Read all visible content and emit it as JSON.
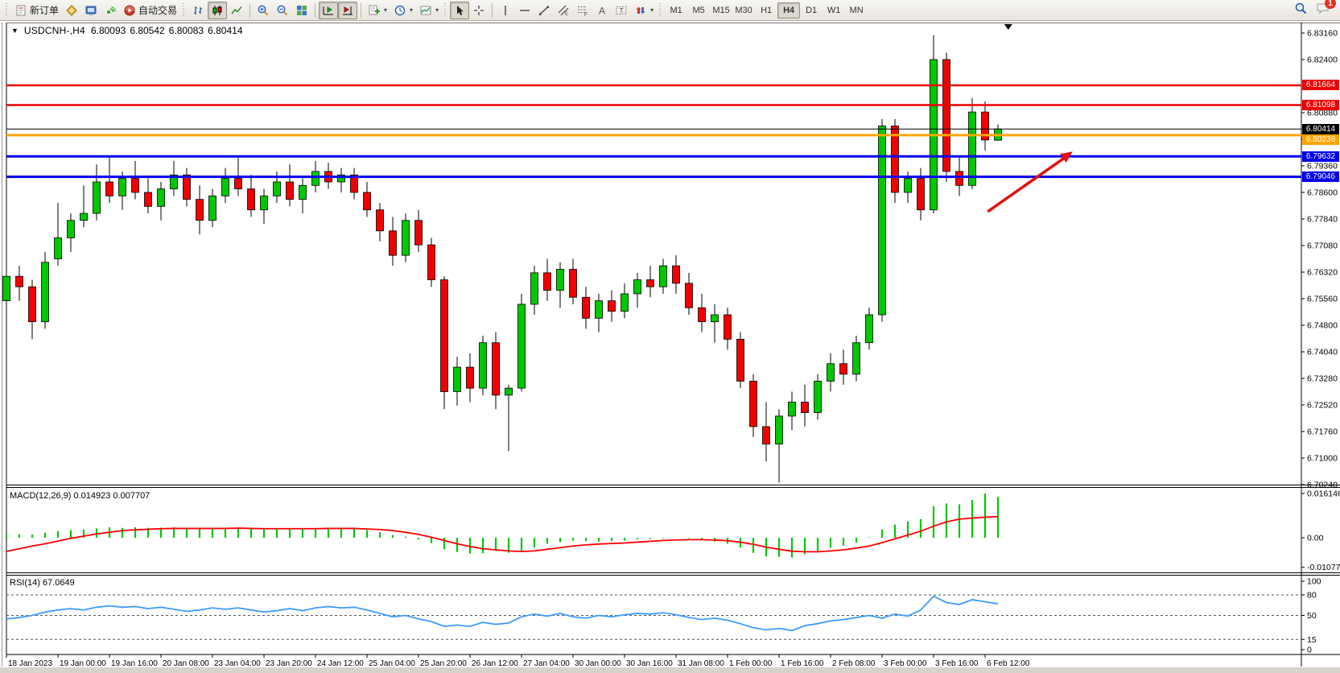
{
  "toolbar": {
    "new_order_label": "新订单",
    "autotrade_label": "自动交易",
    "timeframes": [
      "M1",
      "M5",
      "M15",
      "M30",
      "H1",
      "H4",
      "D1",
      "W1",
      "MN"
    ],
    "active_timeframe": "H4",
    "notification_count": "1"
  },
  "chart": {
    "symbol_title": "USDCNH-,H4",
    "open": "6.80093",
    "high": "6.80542",
    "low": "6.80083",
    "close": "6.80414"
  },
  "indicators": {
    "macd_name": "MACD(12,26,9)",
    "macd_values": "0.014923 0.007707",
    "rsi_name": "RSI(14)",
    "rsi_value": "67.0649"
  },
  "price_axis": {
    "ticks": [
      "6.83160",
      "6.82400",
      "6.80880",
      "6.80120",
      "6.79360",
      "6.78600",
      "6.77840",
      "6.77080",
      "6.76320",
      "6.75560",
      "6.74800",
      "6.74040",
      "6.73280",
      "6.72520",
      "6.71760",
      "6.71000",
      "6.70240"
    ]
  },
  "macd_axis": {
    "ticks": [
      "0.016146",
      "0.00",
      "-0.010774"
    ]
  },
  "rsi_axis": {
    "ticks": [
      "100",
      "80",
      "50",
      "15",
      "0"
    ],
    "levels": [
      80,
      50,
      15
    ]
  },
  "time_axis": {
    "labels": [
      "18 Jan 2023",
      "19 Jan 00:00",
      "19 Jan 16:00",
      "20 Jan 08:00",
      "23 Jan 04:00",
      "23 Jan 20:00",
      "24 Jan 12:00",
      "25 Jan 04:00",
      "25 Jan 20:00",
      "26 Jan 12:00",
      "27 Jan 04:00",
      "30 Jan 00:00",
      "30 Jan 16:00",
      "31 Jan 08:00",
      "1 Feb 00:00",
      "1 Feb 16:00",
      "2 Feb 08:00",
      "3 Feb 00:00",
      "3 Feb 16:00",
      "6 Feb 12:00"
    ]
  },
  "levels": [
    {
      "kind": "resistance",
      "price": "6.81664",
      "value": 6.81664,
      "color": "#EE0000",
      "thickness": 2.5
    },
    {
      "kind": "resistance",
      "price": "6.81098",
      "value": 6.81098,
      "color": "#EE0000",
      "thickness": 2.5
    },
    {
      "kind": "bid-line",
      "price": "6.80414",
      "value": 6.80414,
      "color": "#000000",
      "thickness": 1
    },
    {
      "kind": "pivot",
      "price": "6.80238",
      "value": 6.80238,
      "color": "#FFA500",
      "thickness": 3
    },
    {
      "kind": "support",
      "price": "6.79632",
      "value": 6.79632,
      "color": "#0000EE",
      "thickness": 3
    },
    {
      "kind": "support",
      "price": "6.79046",
      "value": 6.79046,
      "color": "#0000EE",
      "thickness": 3
    }
  ],
  "chart_data": {
    "type": "candlestick",
    "symbol": "USDCNH",
    "timeframe": "H4",
    "price_range": [
      6.7024,
      6.8316
    ],
    "up_color": "#00C800",
    "down_color": "#F20000",
    "candles": [
      [
        6.755,
        6.765,
        6.748,
        6.762
      ],
      [
        6.762,
        6.765,
        6.755,
        6.759
      ],
      [
        6.759,
        6.761,
        6.744,
        6.749
      ],
      [
        6.749,
        6.769,
        6.747,
        6.766
      ],
      [
        6.767,
        6.783,
        6.765,
        6.773
      ],
      [
        6.773,
        6.78,
        6.769,
        6.778
      ],
      [
        6.778,
        6.788,
        6.776,
        6.78
      ],
      [
        6.78,
        6.794,
        6.778,
        6.789
      ],
      [
        6.789,
        6.796,
        6.783,
        6.785
      ],
      [
        6.785,
        6.792,
        6.781,
        6.79
      ],
      [
        6.79,
        6.795,
        6.784,
        6.786
      ],
      [
        6.786,
        6.79,
        6.78,
        6.782
      ],
      [
        6.782,
        6.789,
        6.778,
        6.787
      ],
      [
        6.787,
        6.795,
        6.785,
        6.791
      ],
      [
        6.791,
        6.793,
        6.782,
        6.784
      ],
      [
        6.784,
        6.788,
        6.774,
        6.778
      ],
      [
        6.778,
        6.787,
        6.776,
        6.785
      ],
      [
        6.785,
        6.793,
        6.783,
        6.79
      ],
      [
        6.79,
        6.796,
        6.785,
        6.787
      ],
      [
        6.787,
        6.791,
        6.779,
        6.781
      ],
      [
        6.781,
        6.787,
        6.777,
        6.785
      ],
      [
        6.785,
        6.792,
        6.783,
        6.789
      ],
      [
        6.789,
        6.794,
        6.782,
        6.784
      ],
      [
        6.784,
        6.79,
        6.78,
        6.788
      ],
      [
        6.788,
        6.795,
        6.786,
        6.792
      ],
      [
        6.792,
        6.7945,
        6.787,
        6.789
      ],
      [
        6.789,
        6.793,
        6.786,
        6.791
      ],
      [
        6.791,
        6.793,
        6.784,
        6.786
      ],
      [
        6.786,
        6.789,
        6.779,
        6.781
      ],
      [
        6.781,
        6.783,
        6.772,
        6.775
      ],
      [
        6.775,
        6.779,
        6.765,
        6.768
      ],
      [
        6.768,
        6.78,
        6.766,
        6.778
      ],
      [
        6.778,
        6.781,
        6.769,
        6.771
      ],
      [
        6.771,
        6.773,
        6.759,
        6.761
      ],
      [
        6.761,
        6.762,
        6.724,
        6.729
      ],
      [
        6.729,
        6.739,
        6.725,
        6.736
      ],
      [
        6.736,
        6.74,
        6.726,
        6.73
      ],
      [
        6.73,
        6.745,
        6.728,
        6.743
      ],
      [
        6.743,
        6.746,
        6.724,
        6.728
      ],
      [
        6.728,
        6.731,
        6.712,
        6.73
      ],
      [
        6.73,
        6.757,
        6.729,
        6.754
      ],
      [
        6.754,
        6.765,
        6.751,
        6.763
      ],
      [
        6.763,
        6.767,
        6.755,
        6.758
      ],
      [
        6.758,
        6.766,
        6.753,
        6.764
      ],
      [
        6.764,
        6.767,
        6.754,
        6.756
      ],
      [
        6.756,
        6.759,
        6.747,
        6.75
      ],
      [
        6.75,
        6.757,
        6.746,
        6.755
      ],
      [
        6.755,
        6.758,
        6.749,
        6.752
      ],
      [
        6.752,
        6.76,
        6.75,
        6.757
      ],
      [
        6.757,
        6.763,
        6.753,
        6.761
      ],
      [
        6.761,
        6.765,
        6.756,
        6.759
      ],
      [
        6.759,
        6.767,
        6.757,
        6.765
      ],
      [
        6.765,
        6.768,
        6.757,
        6.76
      ],
      [
        6.76,
        6.763,
        6.751,
        6.753
      ],
      [
        6.753,
        6.757,
        6.746,
        6.749
      ],
      [
        6.749,
        6.754,
        6.743,
        6.751
      ],
      [
        6.751,
        6.753,
        6.741,
        6.744
      ],
      [
        6.744,
        6.746,
        6.73,
        6.732
      ],
      [
        6.732,
        6.734,
        6.716,
        6.719
      ],
      [
        6.719,
        6.726,
        6.709,
        6.714
      ],
      [
        6.714,
        6.724,
        6.703,
        6.722
      ],
      [
        6.722,
        6.729,
        6.718,
        6.726
      ],
      [
        6.726,
        6.731,
        6.719,
        6.723
      ],
      [
        6.723,
        6.734,
        6.721,
        6.732
      ],
      [
        6.732,
        6.74,
        6.729,
        6.737
      ],
      [
        6.737,
        6.741,
        6.731,
        6.734
      ],
      [
        6.734,
        6.745,
        6.732,
        6.743
      ],
      [
        6.743,
        6.753,
        6.741,
        6.751
      ],
      [
        6.751,
        6.807,
        6.749,
        6.805
      ],
      [
        6.805,
        6.807,
        6.783,
        6.786
      ],
      [
        6.786,
        6.792,
        6.783,
        6.79
      ],
      [
        6.79,
        6.793,
        6.778,
        6.781
      ],
      [
        6.781,
        6.831,
        6.78,
        6.824
      ],
      [
        6.824,
        6.826,
        6.789,
        6.792
      ],
      [
        6.792,
        6.796,
        6.785,
        6.788
      ],
      [
        6.788,
        6.813,
        6.787,
        6.809
      ],
      [
        6.809,
        6.812,
        6.798,
        6.801
      ],
      [
        6.80093,
        6.80542,
        6.80083,
        6.80414
      ]
    ],
    "macd": {
      "histogram": [
        0.001,
        0.0013,
        0.0012,
        0.0018,
        0.0024,
        0.0028,
        0.003,
        0.0034,
        0.0038,
        0.0036,
        0.0038,
        0.0036,
        0.0037,
        0.0038,
        0.0034,
        0.0032,
        0.0034,
        0.0036,
        0.0036,
        0.0032,
        0.003,
        0.0032,
        0.0033,
        0.0032,
        0.0034,
        0.0036,
        0.0034,
        0.0033,
        0.0028,
        0.002,
        0.001,
        0.0004,
        -0.0006,
        -0.002,
        -0.0042,
        -0.0052,
        -0.0058,
        -0.0056,
        -0.0048,
        -0.0055,
        -0.005,
        -0.0035,
        -0.0022,
        -0.0016,
        -0.001,
        -0.0012,
        -0.0014,
        -0.0012,
        -0.001,
        -0.0006,
        -0.0004,
        -0.0002,
        0.0,
        -0.0002,
        -0.0008,
        -0.0014,
        -0.0022,
        -0.0036,
        -0.0055,
        -0.0068,
        -0.007,
        -0.0072,
        -0.006,
        -0.0048,
        -0.0036,
        -0.0028,
        -0.0018,
        0.0002,
        0.003,
        0.0048,
        0.006,
        0.0068,
        0.0115,
        0.0125,
        0.0122,
        0.0138,
        0.0161,
        0.0149
      ],
      "signal": [
        -0.005,
        -0.004,
        -0.003,
        -0.0022,
        -0.0012,
        -0.0002,
        0.0006,
        0.0014,
        0.002,
        0.0026,
        0.0029,
        0.0031,
        0.0033,
        0.0034,
        0.0034,
        0.0034,
        0.0034,
        0.0034,
        0.0035,
        0.0034,
        0.0033,
        0.0033,
        0.0033,
        0.0033,
        0.0033,
        0.0034,
        0.0034,
        0.0034,
        0.0032,
        0.003,
        0.0026,
        0.002,
        0.0012,
        0.0002,
        -0.001,
        -0.0022,
        -0.0032,
        -0.004,
        -0.0044,
        -0.0048,
        -0.005,
        -0.0048,
        -0.0042,
        -0.0036,
        -0.003,
        -0.0026,
        -0.0023,
        -0.0021,
        -0.0019,
        -0.0016,
        -0.0013,
        -0.001,
        -0.0008,
        -0.0007,
        -0.0007,
        -0.0008,
        -0.0011,
        -0.0016,
        -0.0024,
        -0.0034,
        -0.0042,
        -0.0049,
        -0.0051,
        -0.0051,
        -0.0048,
        -0.0044,
        -0.0038,
        -0.003,
        -0.0018,
        -0.0004,
        0.001,
        0.0024,
        0.0042,
        0.0058,
        0.0068,
        0.0072,
        0.0075,
        0.0077
      ],
      "current": [
        0.014923,
        0.007707
      ],
      "hist_color": "#00C800",
      "signal_color": "#FF0000"
    },
    "rsi": {
      "values": [
        45,
        47,
        50,
        55,
        58,
        60,
        58,
        62,
        64,
        62,
        63,
        60,
        62,
        59,
        56,
        58,
        61,
        59,
        61,
        58,
        55,
        57,
        60,
        57,
        61,
        63,
        61,
        62,
        58,
        53,
        48,
        50,
        45,
        41,
        34,
        36,
        34,
        40,
        37,
        39,
        48,
        52,
        49,
        53,
        48,
        46,
        50,
        48,
        51,
        53,
        52,
        54,
        51,
        47,
        44,
        46,
        43,
        38,
        32,
        29,
        31,
        28,
        35,
        38,
        42,
        44,
        47,
        50,
        46,
        52,
        49,
        58,
        78,
        69,
        66,
        73,
        70,
        67
      ],
      "current": 67.0649,
      "line_color": "#3E9BFF"
    },
    "annotations": {
      "arrow": {
        "from_bar": 76.2,
        "from_price": 6.7805,
        "to_bar": 82.8,
        "to_price": 6.7977,
        "color": "#E01010"
      },
      "shift_marker_bar": 77.8
    }
  }
}
